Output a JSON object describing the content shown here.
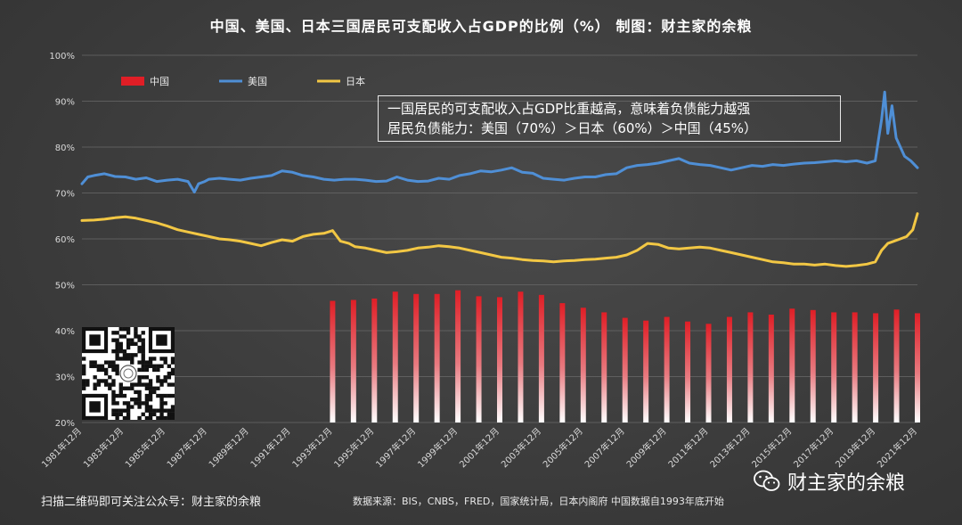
{
  "title": "中国、美国、日本三国居民可支配收入占GDP的比例（%）  制图：财主家的余粮",
  "annotation": {
    "line1": "一国居民的可支配收入占GDP比重越高，意味着负债能力越强",
    "line2": "居民负债能力：美国（70%）＞日本（60%）＞中国（45%）"
  },
  "footer": {
    "qr_caption": "扫描二维码即可关注公众号：财主家的余粮",
    "source": "数据来源：BIS，CNBS，FRED，国家统计局，日本内阁府 中国数据自1993年底开始"
  },
  "watermark": {
    "text": "财主家的余粮",
    "icon": "wechat-icon"
  },
  "colors": {
    "china": "#e01e26",
    "usa": "#4f8fd6",
    "japan": "#f2c744",
    "axis_text": "#d9d9d9",
    "grid": "#6a6a6a"
  },
  "chart_data": {
    "type": "line",
    "ylim": [
      20,
      100
    ],
    "yticks": [
      "20%",
      "30%",
      "40%",
      "50%",
      "60%",
      "70%",
      "80%",
      "90%",
      "100%"
    ],
    "xlim": [
      1981.92,
      2021.92
    ],
    "xtick_labels": [
      "1981年12月",
      "1983年12月",
      "1985年12月",
      "1987年12月",
      "1989年12月",
      "1991年12月",
      "1993年12月",
      "1995年12月",
      "1997年12月",
      "1999年12月",
      "2001年12月",
      "2003年12月",
      "2005年12月",
      "2007年12月",
      "2009年12月",
      "2011年12月",
      "2013年12月",
      "2015年12月",
      "2017年12月",
      "2019年12月",
      "2021年12月"
    ],
    "legend": {
      "position": "top-left"
    },
    "series": [
      {
        "name": "中国",
        "kind": "bar",
        "color": "#e01e26",
        "x": [
          1993.92,
          1994.92,
          1995.92,
          1996.92,
          1997.92,
          1998.92,
          1999.92,
          2000.92,
          2001.92,
          2002.92,
          2003.92,
          2004.92,
          2005.92,
          2006.92,
          2007.92,
          2008.92,
          2009.92,
          2010.92,
          2011.92,
          2012.92,
          2013.92,
          2014.92,
          2015.92,
          2016.92,
          2017.92,
          2018.92,
          2019.92,
          2020.92,
          2021.92
        ],
        "values": [
          46.5,
          46.7,
          47.0,
          48.5,
          48.0,
          48.0,
          48.8,
          47.5,
          47.3,
          48.5,
          47.8,
          46.0,
          45.0,
          44.0,
          42.8,
          42.2,
          43.0,
          42.0,
          41.5,
          43.0,
          44.0,
          43.5,
          44.8,
          44.5,
          44.0,
          44.0,
          43.8,
          44.6,
          43.8
        ]
      },
      {
        "name": "美国",
        "kind": "line",
        "color": "#4f8fd6",
        "x": [
          1981.92,
          1982.2,
          1982.5,
          1983.0,
          1983.5,
          1984.0,
          1984.5,
          1985.0,
          1985.5,
          1986.0,
          1986.5,
          1987.0,
          1987.3,
          1987.5,
          1987.8,
          1988.0,
          1988.5,
          1989.0,
          1989.5,
          1990.0,
          1990.5,
          1991.0,
          1991.5,
          1992.0,
          1992.5,
          1993.0,
          1993.5,
          1994.0,
          1994.5,
          1995.0,
          1995.5,
          1996.0,
          1996.5,
          1997.0,
          1997.5,
          1998.0,
          1998.5,
          1999.0,
          1999.5,
          2000.0,
          2000.5,
          2001.0,
          2001.5,
          2002.0,
          2002.5,
          2003.0,
          2003.5,
          2004.0,
          2004.5,
          2005.0,
          2005.5,
          2006.0,
          2006.5,
          2007.0,
          2007.5,
          2008.0,
          2008.5,
          2009.0,
          2009.5,
          2010.0,
          2010.5,
          2011.0,
          2011.5,
          2012.0,
          2012.5,
          2013.0,
          2013.5,
          2014.0,
          2014.5,
          2015.0,
          2015.5,
          2016.0,
          2016.5,
          2017.0,
          2017.5,
          2018.0,
          2018.5,
          2019.0,
          2019.5,
          2019.9,
          2020.2,
          2020.35,
          2020.5,
          2020.7,
          2020.9,
          2021.1,
          2021.3,
          2021.6,
          2021.92
        ],
        "values": [
          72.0,
          73.5,
          73.8,
          74.2,
          73.6,
          73.5,
          73.0,
          73.3,
          72.5,
          72.8,
          73.0,
          72.5,
          70.2,
          72.0,
          72.5,
          73.0,
          73.2,
          73.0,
          72.8,
          73.2,
          73.5,
          73.8,
          74.8,
          74.5,
          73.8,
          73.5,
          73.0,
          72.8,
          73.0,
          73.0,
          72.8,
          72.5,
          72.6,
          73.5,
          72.8,
          72.5,
          72.6,
          73.2,
          73.0,
          73.8,
          74.2,
          74.8,
          74.6,
          75.0,
          75.5,
          74.5,
          74.3,
          73.2,
          73.0,
          72.8,
          73.2,
          73.5,
          73.5,
          74.0,
          74.2,
          75.5,
          76.0,
          76.2,
          76.5,
          77.0,
          77.5,
          76.5,
          76.2,
          76.0,
          75.5,
          75.0,
          75.5,
          76.0,
          75.8,
          76.2,
          76.0,
          76.3,
          76.5,
          76.6,
          76.8,
          77.0,
          76.8,
          77.0,
          76.5,
          77.0,
          86.0,
          92.0,
          83.0,
          89.0,
          82.0,
          80.0,
          78.0,
          77.0,
          75.5
        ]
      },
      {
        "name": "日本",
        "kind": "line",
        "color": "#f2c744",
        "x": [
          1981.92,
          1982.5,
          1983.0,
          1983.5,
          1984.0,
          1984.5,
          1985.0,
          1985.5,
          1986.0,
          1986.5,
          1987.0,
          1987.5,
          1988.0,
          1988.5,
          1989.0,
          1989.5,
          1990.0,
          1990.5,
          1991.0,
          1991.5,
          1992.0,
          1992.5,
          1993.0,
          1993.5,
          1993.92,
          1994.3,
          1994.7,
          1995.0,
          1995.5,
          1996.0,
          1996.5,
          1997.0,
          1997.5,
          1998.0,
          1998.5,
          1999.0,
          1999.5,
          2000.0,
          2000.5,
          2001.0,
          2001.5,
          2002.0,
          2002.5,
          2003.0,
          2003.5,
          2004.0,
          2004.5,
          2005.0,
          2005.5,
          2006.0,
          2006.5,
          2007.0,
          2007.5,
          2008.0,
          2008.5,
          2009.0,
          2009.5,
          2010.0,
          2010.5,
          2011.0,
          2011.5,
          2012.0,
          2012.5,
          2013.0,
          2013.5,
          2014.0,
          2014.5,
          2015.0,
          2015.5,
          2016.0,
          2016.5,
          2017.0,
          2017.5,
          2018.0,
          2018.5,
          2019.0,
          2019.5,
          2019.9,
          2020.2,
          2020.5,
          2020.8,
          2021.1,
          2021.4,
          2021.7,
          2021.92
        ],
        "values": [
          64.0,
          64.1,
          64.3,
          64.6,
          64.8,
          64.5,
          64.0,
          63.5,
          62.8,
          62.0,
          61.5,
          61.0,
          60.5,
          60.0,
          59.8,
          59.5,
          59.0,
          58.5,
          59.2,
          59.8,
          59.5,
          60.5,
          61.0,
          61.2,
          61.8,
          59.5,
          59.0,
          58.3,
          58.0,
          57.5,
          57.0,
          57.2,
          57.5,
          58.0,
          58.2,
          58.5,
          58.3,
          58.0,
          57.5,
          57.0,
          56.5,
          56.0,
          55.8,
          55.5,
          55.3,
          55.2,
          55.0,
          55.2,
          55.3,
          55.5,
          55.6,
          55.8,
          56.0,
          56.5,
          57.5,
          59.0,
          58.8,
          58.0,
          57.8,
          58.0,
          58.2,
          58.0,
          57.5,
          57.0,
          56.5,
          56.0,
          55.5,
          55.0,
          54.8,
          54.5,
          54.5,
          54.3,
          54.5,
          54.2,
          54.0,
          54.2,
          54.5,
          55.0,
          57.5,
          59.0,
          59.5,
          60.0,
          60.5,
          62.0,
          65.5
        ]
      }
    ]
  }
}
